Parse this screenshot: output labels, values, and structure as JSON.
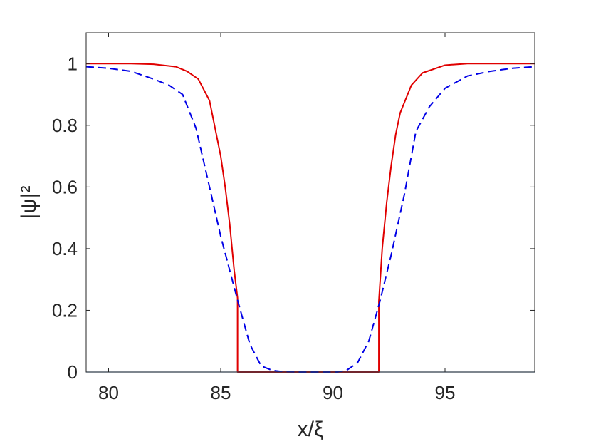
{
  "chart_data": {
    "type": "line",
    "title": "",
    "xlabel": "x/ξ",
    "ylabel": "|ψ|²",
    "xlim": [
      79,
      99
    ],
    "ylim": [
      0,
      1.1
    ],
    "xticks": [
      80,
      85,
      90,
      95
    ],
    "yticks": [
      0,
      0.2,
      0.4,
      0.6,
      0.8,
      1
    ],
    "xtick_labels": [
      "80",
      "85",
      "90",
      "95"
    ],
    "ytick_labels": [
      "0",
      "0.2",
      "0.4",
      "0.6",
      "0.8",
      "1"
    ],
    "grid": false,
    "legend": "none",
    "series": [
      {
        "color": "#e00000",
        "style": "solid",
        "x": [
          79,
          80,
          81,
          82,
          83,
          83.5,
          84,
          84.5,
          85,
          85.2,
          85.4,
          85.6,
          85.75,
          85.75,
          92.05,
          92.05,
          92.2,
          92.4,
          92.6,
          92.8,
          93,
          93.5,
          94,
          95,
          96,
          97,
          98,
          99
        ],
        "y": [
          1.0,
          1.0,
          1.0,
          0.998,
          0.99,
          0.975,
          0.95,
          0.88,
          0.7,
          0.6,
          0.48,
          0.33,
          0.24,
          0.0,
          0.0,
          0.23,
          0.4,
          0.55,
          0.67,
          0.77,
          0.84,
          0.93,
          0.97,
          0.995,
          1.0,
          1.0,
          1.0,
          1.0
        ]
      },
      {
        "color": "#0000e6",
        "style": "dashed",
        "x": [
          79,
          80,
          81,
          82,
          82.7,
          83.3,
          83.9,
          84.5,
          85,
          85.4,
          85.8,
          86.3,
          86.8,
          87.3,
          87.8,
          88.5,
          89.5,
          90.2,
          90.6,
          91.1,
          91.6,
          92.1,
          92.6,
          93.2,
          93.7,
          94.3,
          95,
          96,
          97,
          98,
          99
        ],
        "y": [
          0.99,
          0.985,
          0.975,
          0.95,
          0.93,
          0.9,
          0.79,
          0.6,
          0.44,
          0.33,
          0.22,
          0.09,
          0.02,
          0.005,
          0.001,
          0.0,
          0.0,
          0.0,
          0.005,
          0.03,
          0.1,
          0.23,
          0.38,
          0.58,
          0.78,
          0.86,
          0.92,
          0.96,
          0.975,
          0.985,
          0.99
        ]
      },
      {
        "color": "#5b9bd5",
        "style": "solid",
        "x": [
          79,
          99
        ],
        "y": [
          0,
          0
        ]
      }
    ]
  }
}
